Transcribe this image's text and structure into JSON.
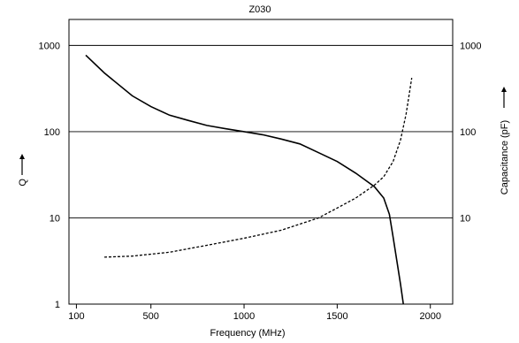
{
  "chart_data": {
    "type": "line",
    "title": "Z030",
    "xlabel": "Frequency (MHz)",
    "ylabel_left": "Q",
    "ylabel_right": "Capacitance (pF)",
    "xlim": [
      60,
      2120
    ],
    "ylim_left": [
      1,
      2000
    ],
    "ylim_right": [
      1,
      2000
    ],
    "y_scale": "log",
    "x_ticks": [
      100,
      500,
      1000,
      1500,
      2000
    ],
    "y_ticks": [
      1,
      10,
      100,
      1000
    ],
    "y_ticks_right": [
      10,
      100,
      1000
    ],
    "grid": "horizontal",
    "series": [
      {
        "axis": "left",
        "style": "solid",
        "x": [
          150,
          250,
          400,
          500,
          600,
          700,
          800,
          900,
          1000,
          1100,
          1200,
          1300,
          1400,
          1500,
          1600,
          1700,
          1750,
          1780,
          1800,
          1820,
          1840,
          1855
        ],
        "y": [
          770,
          480,
          260,
          195,
          155,
          135,
          118,
          108,
          100,
          92,
          82,
          72,
          57,
          45,
          33,
          23,
          17,
          11,
          6,
          3.2,
          1.7,
          1.0
        ]
      },
      {
        "axis": "right",
        "style": "dashed",
        "x": [
          250,
          400,
          600,
          800,
          1000,
          1200,
          1400,
          1500,
          1600,
          1700,
          1750,
          1800,
          1840,
          1870,
          1890,
          1900
        ],
        "y": [
          3.5,
          3.6,
          4.0,
          4.8,
          5.8,
          7.2,
          10,
          13,
          17,
          24,
          30,
          45,
          80,
          160,
          300,
          420
        ]
      }
    ]
  }
}
